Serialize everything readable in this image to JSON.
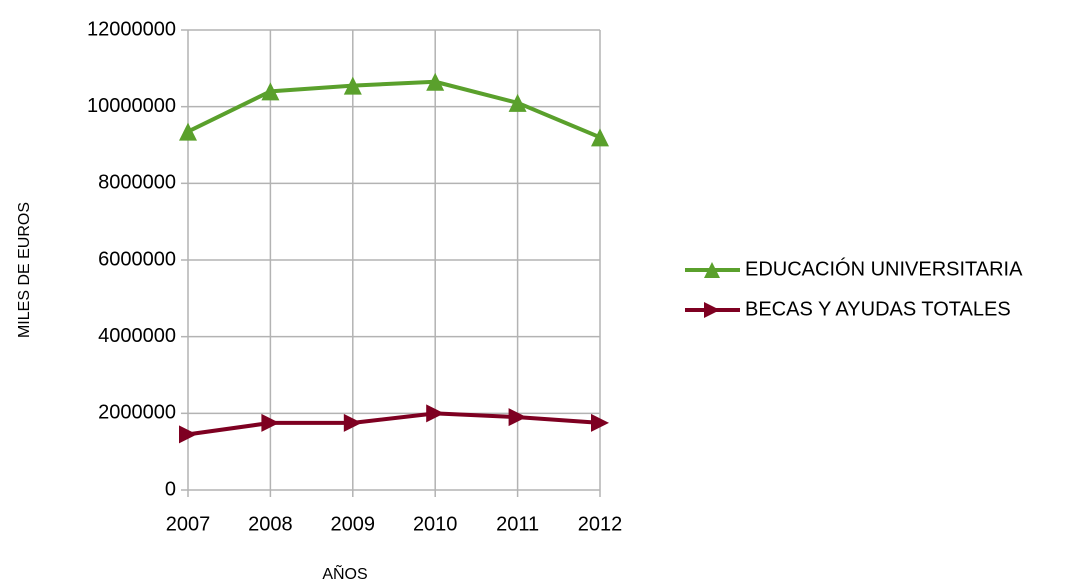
{
  "chart_data": {
    "type": "line",
    "x": [
      2007,
      2008,
      2009,
      2010,
      2011,
      2012
    ],
    "series": [
      {
        "name": "EDUCACIÓN UNIVERSITARIA",
        "color": "#5aa02c",
        "marker": "triangle-up",
        "values": [
          9350000,
          10400000,
          10550000,
          10650000,
          10100000,
          9200000
        ]
      },
      {
        "name": "BECAS Y AYUDAS TOTALES",
        "color": "#7e0021",
        "marker": "triangle-right",
        "values": [
          1450000,
          1750000,
          1750000,
          2000000,
          1900000,
          1750000
        ]
      }
    ],
    "xlim": [
      2007,
      2012
    ],
    "xticks": [
      2007,
      2008,
      2009,
      2010,
      2011,
      2012
    ],
    "ylim": [
      0,
      12000000
    ],
    "yticks": [
      0,
      2000000,
      4000000,
      6000000,
      8000000,
      10000000,
      12000000
    ],
    "x_label": "AÑOS",
    "y_label": "MILES DE EUROS",
    "grid": true,
    "legend": "right"
  }
}
